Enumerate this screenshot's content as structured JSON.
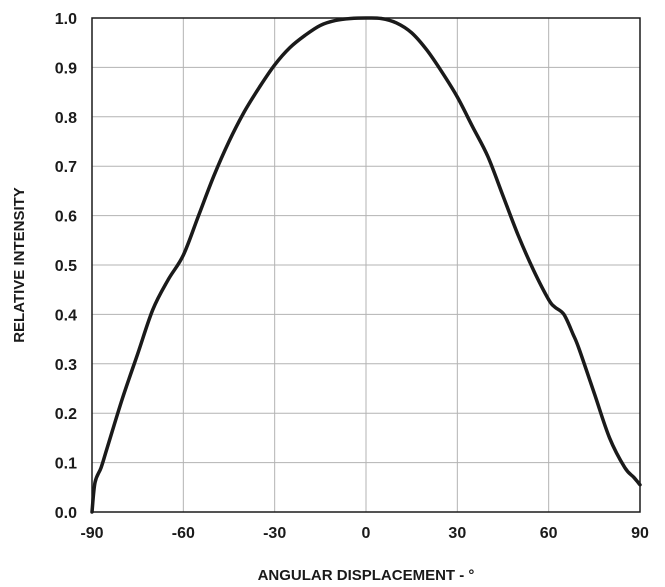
{
  "chart_data": {
    "type": "line",
    "title": "",
    "xlabel": "ANGULAR DISPLACEMENT - °",
    "ylabel": "RELATIVE INTENSITY",
    "xlim": [
      -90,
      90
    ],
    "ylim": [
      0.0,
      1.0
    ],
    "x_ticks": [
      -90,
      -60,
      -30,
      0,
      30,
      60,
      90
    ],
    "x_tick_labels": [
      "-90",
      "-60",
      "-30",
      "0",
      "30",
      "60",
      "90"
    ],
    "y_ticks": [
      0.0,
      0.1,
      0.2,
      0.3,
      0.4,
      0.5,
      0.6,
      0.7,
      0.8,
      0.9,
      1.0
    ],
    "y_tick_labels": [
      "0.0",
      "0.1",
      "0.2",
      "0.3",
      "0.4",
      "0.5",
      "0.6",
      "0.7",
      "0.8",
      "0.9",
      "1.0"
    ],
    "grid": true,
    "series": [
      {
        "color": "#1a1a1a",
        "x": [
          -90,
          -89,
          -87,
          -85,
          -80,
          -75,
          -70,
          -65,
          -60,
          -55,
          -50,
          -45,
          -40,
          -35,
          -30,
          -25,
          -20,
          -15,
          -10,
          -5,
          0,
          5,
          10,
          15,
          20,
          25,
          30,
          35,
          40,
          45,
          50,
          55,
          60,
          62,
          65,
          68,
          70,
          75,
          80,
          85,
          88,
          90
        ],
        "y": [
          0.0,
          0.06,
          0.09,
          0.13,
          0.23,
          0.32,
          0.41,
          0.47,
          0.52,
          0.6,
          0.68,
          0.75,
          0.81,
          0.86,
          0.905,
          0.94,
          0.965,
          0.985,
          0.995,
          0.999,
          1.0,
          0.999,
          0.99,
          0.97,
          0.935,
          0.89,
          0.84,
          0.78,
          0.72,
          0.64,
          0.56,
          0.49,
          0.43,
          0.415,
          0.4,
          0.36,
          0.33,
          0.24,
          0.15,
          0.09,
          0.07,
          0.055
        ]
      }
    ]
  }
}
